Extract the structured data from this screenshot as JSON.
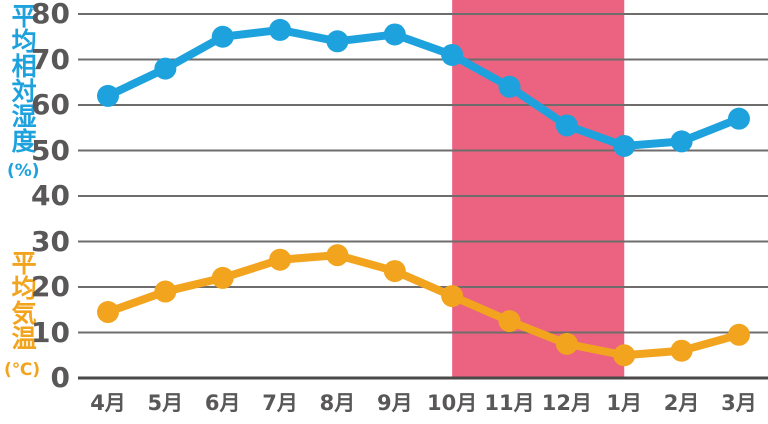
{
  "axis_titles": {
    "humidity": {
      "label": "平均相対湿度",
      "unit": "(%)",
      "color": "#1ea2de"
    },
    "temperature": {
      "label": "平均気温",
      "unit": "(℃)",
      "color": "#f2a41e"
    }
  },
  "styles": {
    "tick_text_color": "#595757",
    "grid_color": "#6f6c6c",
    "axis_line_color": "#4b4848",
    "background": "#ffffff",
    "band_color": "#eb6380"
  },
  "chart_data": {
    "type": "line",
    "categories": [
      "4月",
      "5月",
      "6月",
      "7月",
      "8月",
      "9月",
      "10月",
      "11月",
      "12月",
      "1月",
      "2月",
      "3月"
    ],
    "series": [
      {
        "name": "平均相対湿度",
        "unit": "%",
        "color": "#1ea2de",
        "values": [
          62,
          68,
          75,
          76.5,
          74,
          75.5,
          71,
          64,
          55.5,
          51,
          52,
          57
        ]
      },
      {
        "name": "平均気温",
        "unit": "℃",
        "color": "#f2a41e",
        "values": [
          14.5,
          19,
          22,
          26,
          27,
          23.5,
          18,
          12.5,
          7.5,
          5,
          6,
          9.5
        ]
      }
    ],
    "ylim": [
      0,
      80
    ],
    "ytick_step": 10,
    "ytick_labels": [
      "0",
      "10",
      "20",
      "30",
      "40",
      "50",
      "60",
      "70",
      "80"
    ],
    "grid": true,
    "legend_position": "none",
    "highlight_band": {
      "from_category": "10月",
      "to_category": "1月",
      "color": "#eb6380"
    }
  }
}
